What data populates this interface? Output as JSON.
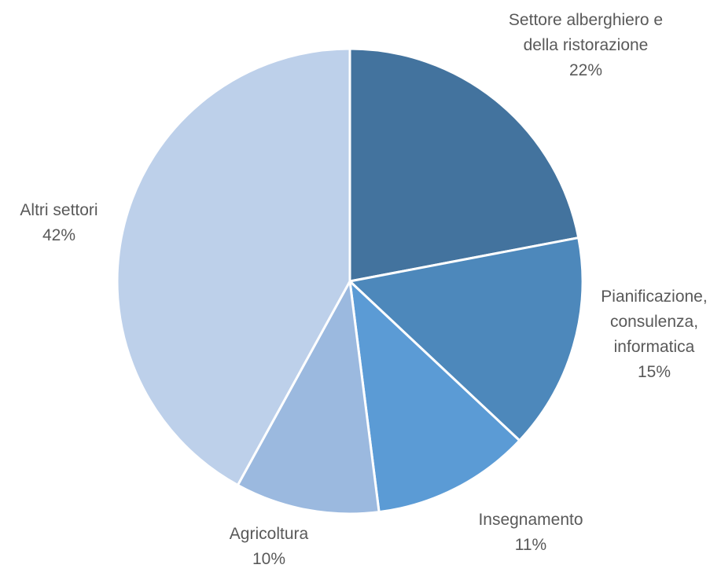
{
  "chart_data": {
    "type": "pie",
    "start_angle_deg": 0,
    "direction": "clockwise",
    "slices": [
      {
        "label_lines": [
          "Settore alberghiero e",
          "della ristorazione"
        ],
        "value": 22,
        "value_label": "22%",
        "color": "#43739E"
      },
      {
        "label_lines": [
          "Pianificazione,",
          "consulenza,",
          "informatica"
        ],
        "value": 15,
        "value_label": "15%",
        "color": "#4D88BB"
      },
      {
        "label_lines": [
          "Insegnamento"
        ],
        "value": 11,
        "value_label": "11%",
        "color": "#5B9BD5"
      },
      {
        "label_lines": [
          "Agricoltura"
        ],
        "value": 10,
        "value_label": "10%",
        "color": "#9BB9DF"
      },
      {
        "label_lines": [
          "Altri settori"
        ],
        "value": 42,
        "value_label": "42%",
        "color": "#BDD0EA"
      }
    ]
  }
}
